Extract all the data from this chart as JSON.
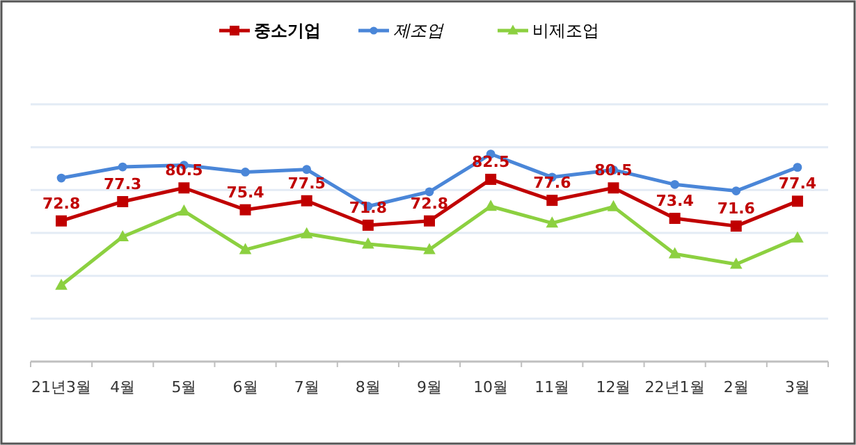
{
  "chart_data": {
    "type": "line",
    "categories": [
      "21년3월",
      "4월",
      "5월",
      "6월",
      "7월",
      "8월",
      "9월",
      "10월",
      "11월",
      "12월",
      "22년1월",
      "2월",
      "3월"
    ],
    "ylim": [
      40,
      100
    ],
    "yticks": [
      {
        "value": 40,
        "label": null
      },
      {
        "value": 50,
        "label": null
      },
      {
        "value": 60,
        "label": null
      },
      {
        "value": 70,
        "label": null
      },
      {
        "value": 80,
        "label": null
      },
      {
        "value": 90,
        "label": null
      },
      {
        "value": 100,
        "label": null
      }
    ],
    "grid": "y",
    "legend": "top",
    "tick_labels": "x",
    "series": [
      {
        "name": "중소기업",
        "color": "#c00000",
        "marker": "square",
        "values": [
          72.8,
          77.3,
          80.5,
          75.4,
          77.5,
          71.8,
          72.8,
          82.5,
          77.6,
          80.5,
          73.4,
          71.6,
          77.4
        ],
        "value_labels": [
          "72.8",
          "77.3",
          "80.5",
          "75.4",
          "77.5",
          "71.8",
          "72.8",
          "82.5",
          "77.6",
          "80.5",
          "73.4",
          "71.6",
          "77.4"
        ]
      },
      {
        "name": "제조업",
        "color": "#4a86d8",
        "marker": "circle",
        "values": [
          82.8,
          85.4,
          85.8,
          84.2,
          84.8,
          76.2,
          79.6,
          88.4,
          83.0,
          84.7,
          81.3,
          79.8,
          85.3
        ]
      },
      {
        "name": "비제조업",
        "color": "#8cd040",
        "marker": "triangle",
        "values": [
          57.8,
          69.1,
          75.1,
          66.1,
          69.8,
          67.4,
          66.1,
          76.2,
          72.3,
          76.1,
          65.1,
          62.7,
          68.8
        ]
      }
    ]
  }
}
